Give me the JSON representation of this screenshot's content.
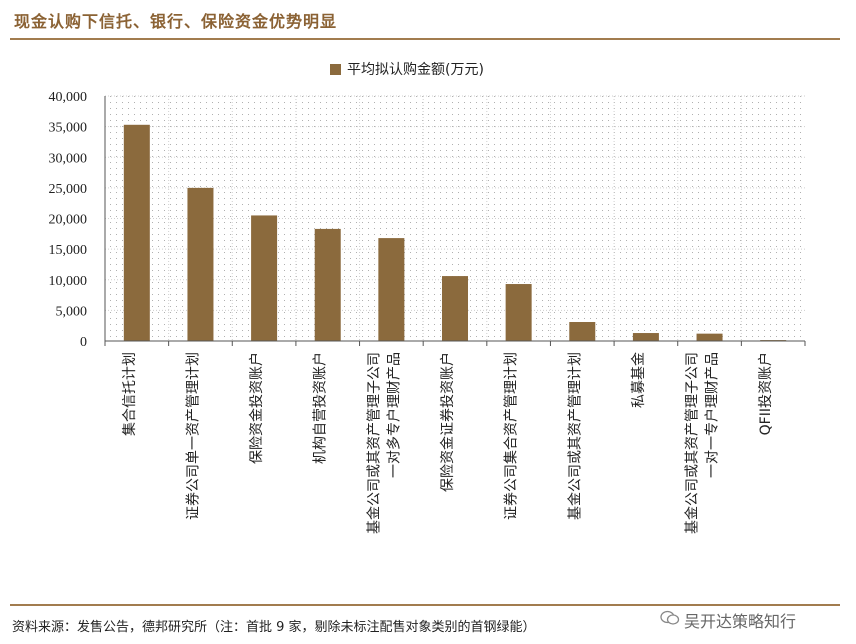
{
  "header": {
    "title": "现金认购下信托、银行、保险资金优势明显"
  },
  "footer": {
    "source": "资料来源：发售公告，德邦研究所（注：首批 9 家，剔除未标注配售对象类别的首钢绿能）",
    "watermark": "吴开达策略知行",
    "watermark_icon": "wechat-icon"
  },
  "colors": {
    "bar": "#8b6a3d",
    "rule": "#a27c4f",
    "title": "#8b6234"
  },
  "chart_data": {
    "type": "bar",
    "legend": "平均拟认购金额(万元)",
    "legend_position": "top",
    "grid": true,
    "ylim": [
      0,
      40000
    ],
    "yticks": [
      "0",
      "5,000",
      "10,000",
      "15,000",
      "20,000",
      "25,000",
      "30,000",
      "35,000",
      "40,000"
    ],
    "categories": [
      [
        "集合信托计划"
      ],
      [
        "证券公司单一资产管理计划"
      ],
      [
        "保险资金投资账户"
      ],
      [
        "机构自营投资账户"
      ],
      [
        "基金公司或其资产管理子公司",
        "一对多专户理财产品"
      ],
      [
        "保险资金证券投资账户"
      ],
      [
        "证券公司集合资产管理计划"
      ],
      [
        "基金公司或其资产管理计划"
      ],
      [
        "私募基金"
      ],
      [
        "基金公司或其资产管理子公司",
        "一对一专户理财产品"
      ],
      [
        "QFII投资账户"
      ]
    ],
    "series": [
      {
        "name": "平均拟认购金额(万元)",
        "values": [
          35300,
          25000,
          20500,
          18300,
          16800,
          10600,
          9300,
          3100,
          1300,
          1200,
          150
        ]
      }
    ]
  }
}
